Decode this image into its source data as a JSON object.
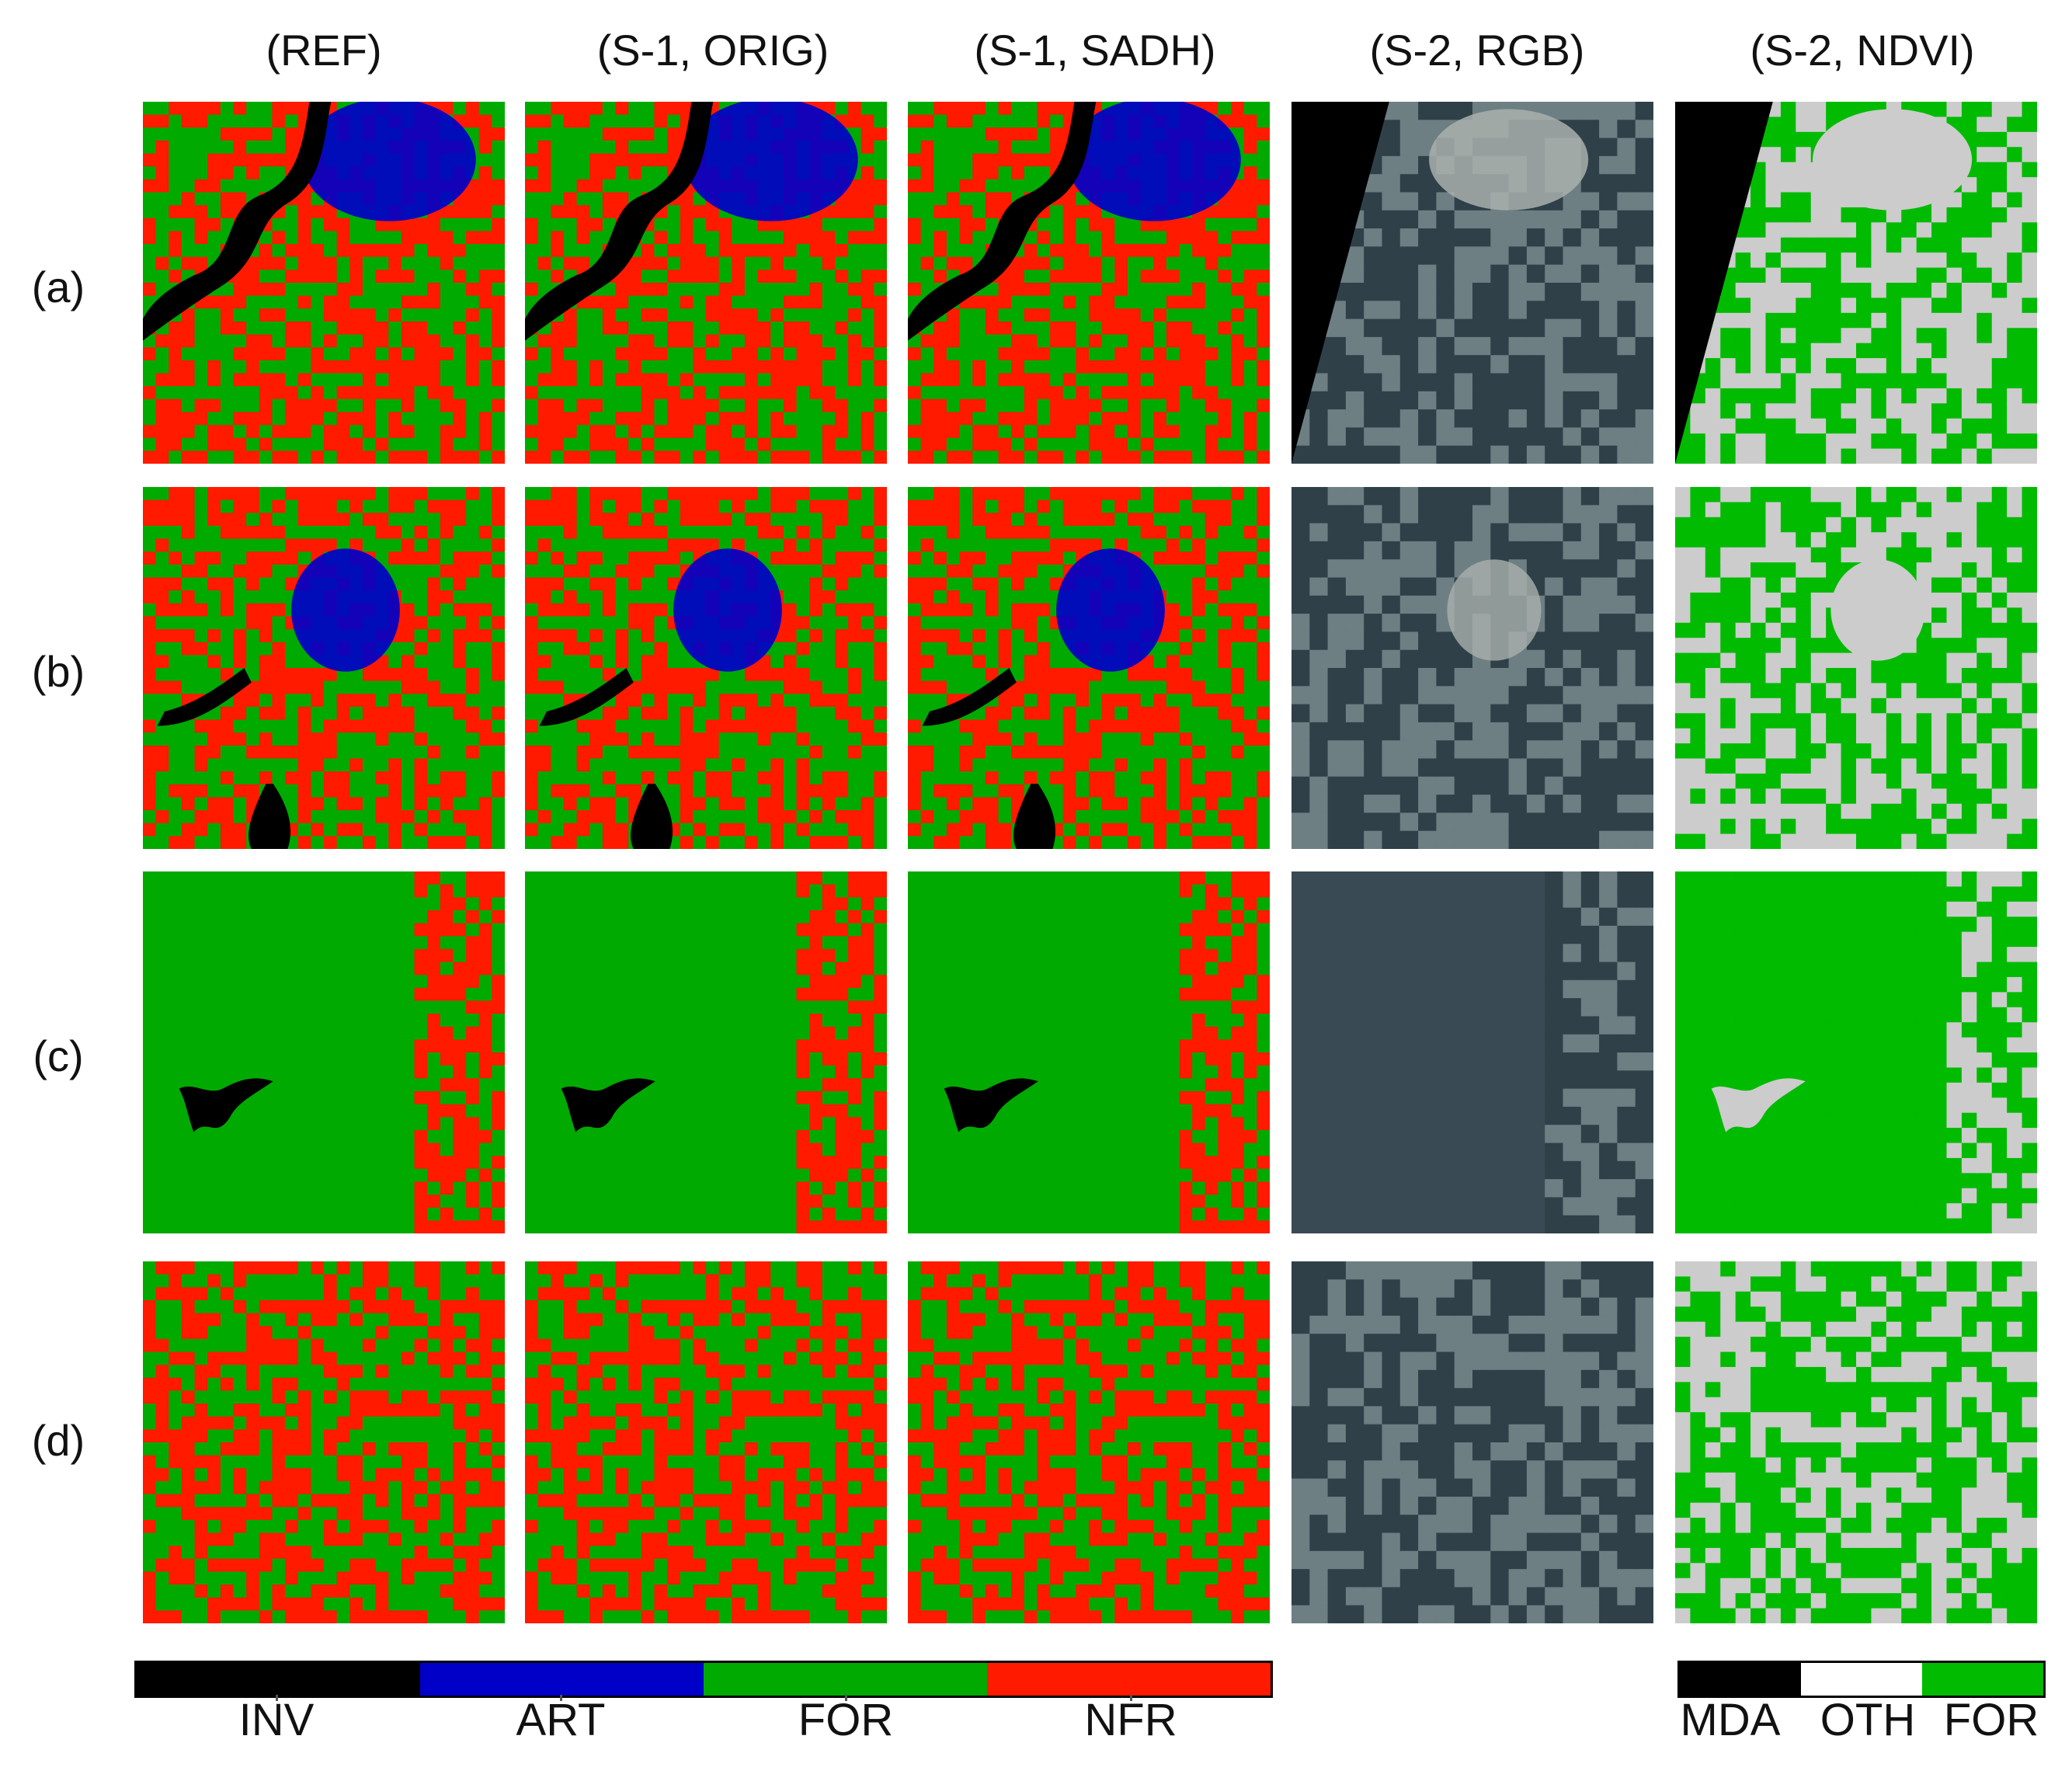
{
  "columns": [
    "(REF)",
    "(S-1, ORIG)",
    "(S-1, SADH)",
    "(S-2, RGB)",
    "(S-2, NDVI)"
  ],
  "rows": [
    "(a)",
    "(b)",
    "(c)",
    "(d)"
  ],
  "legend_classes": [
    {
      "label": "INV",
      "color": "#000000"
    },
    {
      "label": "ART",
      "color": "#0000c8"
    },
    {
      "label": "FOR",
      "color": "#00aa00"
    },
    {
      "label": "NFR",
      "color": "#ff1a00"
    }
  ],
  "legend_ndvi": [
    {
      "label": "MDA",
      "color": "#000000"
    },
    {
      "label": "OTH",
      "color": "#ffffff"
    },
    {
      "label": "FOR",
      "color": "#00bb00"
    }
  ],
  "colors": {
    "forest": "#00aa00",
    "nonforest": "#ff1a00",
    "artificial": "#0000c8",
    "invalid": "#000000",
    "ndvi_other": "#cccccc",
    "ndvi_forest": "#00bb00",
    "rgb_dark": "#2f4049",
    "rgb_light": "#6d7f83"
  }
}
